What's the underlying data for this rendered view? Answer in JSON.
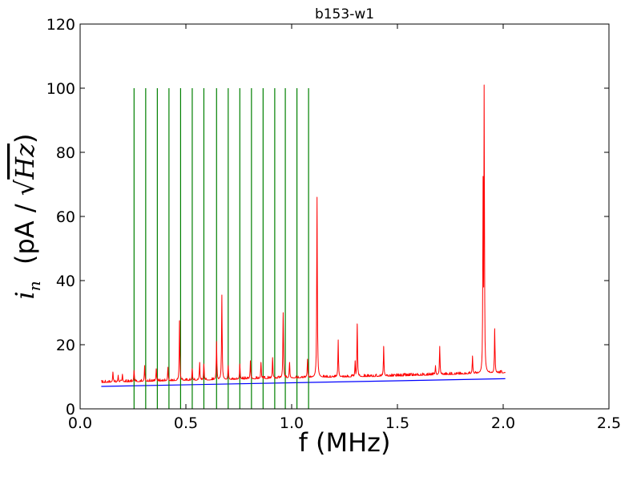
{
  "chart_data": {
    "type": "line",
    "title": "b153-w1",
    "xlabel": "f (MHz)",
    "ylabel": {
      "prefix": "i",
      "subscript": "n",
      "middle": "  (pA / ",
      "radicand": "Hz",
      "suffix": ")"
    },
    "xlim": [
      0.0,
      2.5
    ],
    "ylim": [
      0,
      120
    ],
    "x_ticks": [
      0.0,
      0.5,
      1.0,
      1.5,
      2.0,
      2.5
    ],
    "x_tick_labels": [
      "0.0",
      "0.5",
      "1.0",
      "1.5",
      "2.0",
      "2.5"
    ],
    "y_ticks": [
      0,
      20,
      40,
      60,
      80,
      100,
      120
    ],
    "y_tick_labels": [
      "0",
      "20",
      "40",
      "60",
      "80",
      "100",
      "120"
    ],
    "grid": false,
    "colors": {
      "noise": "#ff0000",
      "model": "#0000ff",
      "markers": "#008000"
    },
    "series": [
      {
        "key": "measured_noise",
        "style": "red-line",
        "x_range": [
          0.1,
          2.01
        ],
        "baseline": [
          [
            0.1,
            8.2
          ],
          [
            0.5,
            8.8
          ],
          [
            1.0,
            9.6
          ],
          [
            1.5,
            10.2
          ],
          [
            2.0,
            11.2
          ]
        ],
        "peaks": [
          [
            0.155,
            11.5
          ],
          [
            0.18,
            10.5
          ],
          [
            0.2,
            10.8
          ],
          [
            0.255,
            12
          ],
          [
            0.305,
            13.5
          ],
          [
            0.36,
            12.5
          ],
          [
            0.415,
            13
          ],
          [
            0.47,
            27.5
          ],
          [
            0.53,
            12.5
          ],
          [
            0.565,
            14.5
          ],
          [
            0.585,
            14
          ],
          [
            0.645,
            21
          ],
          [
            0.67,
            35.5
          ],
          [
            0.7,
            13.5
          ],
          [
            0.755,
            14
          ],
          [
            0.805,
            15
          ],
          [
            0.855,
            14.5
          ],
          [
            0.91,
            16
          ],
          [
            0.96,
            30
          ],
          [
            0.99,
            14.5
          ],
          [
            1.075,
            15.5
          ],
          [
            1.12,
            66
          ],
          [
            1.22,
            21.5
          ],
          [
            1.3,
            15
          ],
          [
            1.31,
            26.5
          ],
          [
            1.435,
            19.5
          ],
          [
            1.68,
            13.5
          ],
          [
            1.7,
            19.5
          ],
          [
            1.855,
            16.5
          ],
          [
            1.905,
            72.5
          ],
          [
            1.91,
            101
          ],
          [
            1.96,
            25
          ]
        ]
      },
      {
        "key": "model_noise",
        "style": "blue-line",
        "x": [
          0.1,
          2.01
        ],
        "y": [
          7.0,
          9.4
        ]
      },
      {
        "key": "harmonic_markers",
        "style": "green-vertical-lines",
        "x": [
          0.255,
          0.31,
          0.365,
          0.42,
          0.475,
          0.53,
          0.585,
          0.645,
          0.7,
          0.755,
          0.81,
          0.865,
          0.92,
          0.97,
          1.025,
          1.08
        ],
        "y_range": [
          0,
          100
        ]
      }
    ]
  }
}
